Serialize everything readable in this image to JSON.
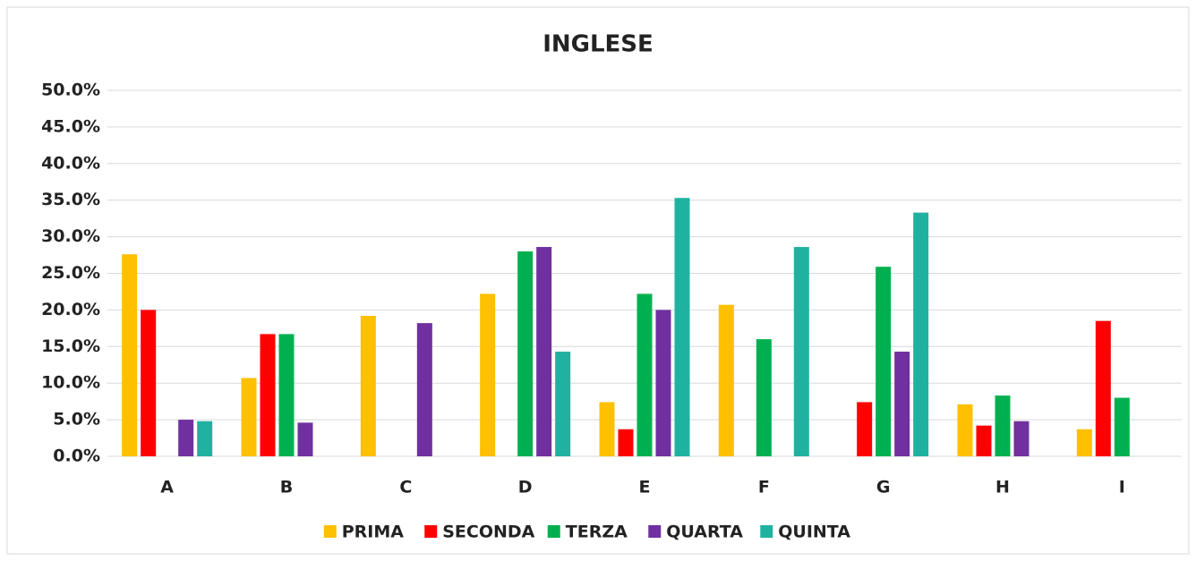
{
  "chart_data": {
    "type": "bar",
    "title": "INGLESE",
    "categories": [
      "A",
      "B",
      "C",
      "D",
      "E",
      "F",
      "G",
      "H",
      "I"
    ],
    "series": [
      {
        "name": "PRIMA",
        "color": "#ffc000",
        "values": [
          27.6,
          10.7,
          19.2,
          22.2,
          7.4,
          20.7,
          0,
          7.1,
          3.7
        ]
      },
      {
        "name": "SECONDA",
        "color": "#ff0000",
        "values": [
          20.0,
          16.7,
          0,
          0,
          3.7,
          0,
          7.4,
          4.2,
          18.5
        ]
      },
      {
        "name": "TERZA",
        "color": "#00b050",
        "values": [
          0,
          16.7,
          0,
          28.0,
          22.2,
          16.0,
          25.9,
          8.3,
          8.0
        ]
      },
      {
        "name": "QUARTA",
        "color": "#7030a0",
        "values": [
          5.0,
          4.6,
          18.2,
          28.6,
          20.0,
          0,
          14.3,
          4.8,
          0
        ]
      },
      {
        "name": "QUINTA",
        "color": "#20b2a0",
        "values": [
          4.8,
          0,
          0,
          14.3,
          35.3,
          28.6,
          33.3,
          0,
          0
        ]
      }
    ],
    "ylim": [
      0,
      50
    ],
    "yticks": [
      {
        "value": 0,
        "label": "0.0%"
      },
      {
        "value": 5,
        "label": "5.0%"
      },
      {
        "value": 10,
        "label": "10.0%"
      },
      {
        "value": 15,
        "label": "15.0%"
      },
      {
        "value": 20,
        "label": "20.0%"
      },
      {
        "value": 25,
        "label": "25.0%"
      },
      {
        "value": 30,
        "label": "30.0%"
      },
      {
        "value": 35,
        "label": "35.0%"
      },
      {
        "value": 40,
        "label": "40.0%"
      },
      {
        "value": 45,
        "label": "45.0%"
      },
      {
        "value": 50,
        "label": "50.0%"
      }
    ],
    "grid": true,
    "legend": "bottom"
  }
}
